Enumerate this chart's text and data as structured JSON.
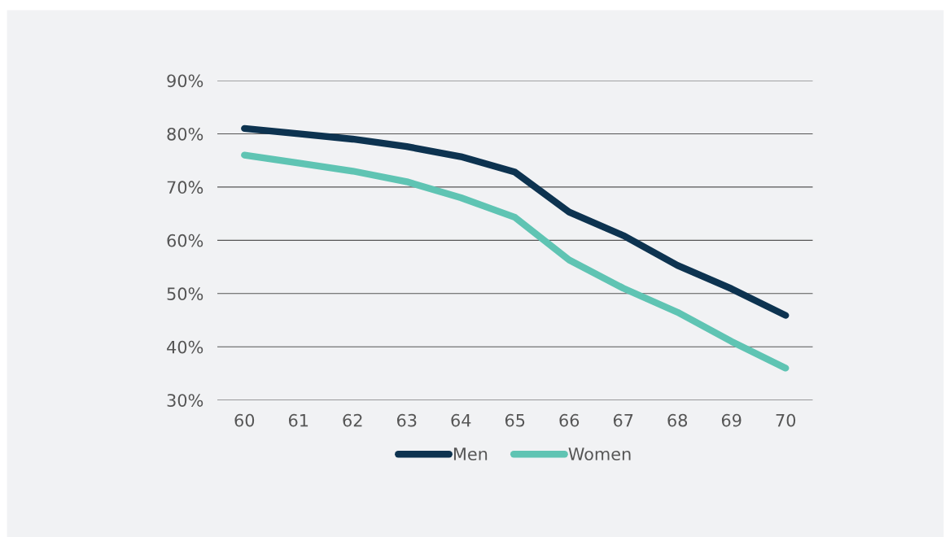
{
  "chart_data": {
    "type": "line",
    "categories": [
      "60",
      "61",
      "62",
      "63",
      "64",
      "65",
      "66",
      "67",
      "68",
      "69",
      "70"
    ],
    "series": [
      {
        "name": "Men",
        "color": "#0d3350",
        "values": [
          81,
          80,
          79,
          77.6,
          75.7,
          72.8,
          65.3,
          60.9,
          55.3,
          50.9,
          45.9
        ]
      },
      {
        "name": "Women",
        "color": "#5fc4b3",
        "values": [
          76,
          74.5,
          73,
          71,
          68,
          64.3,
          56.3,
          51,
          46.5,
          41,
          36
        ]
      }
    ],
    "ylim": [
      30,
      90
    ],
    "yticks": [
      {
        "value": 30,
        "label": "30%"
      },
      {
        "value": 40,
        "label": "40%"
      },
      {
        "value": 50,
        "label": "50%"
      },
      {
        "value": 60,
        "label": "60%"
      },
      {
        "value": 70,
        "label": "70%"
      },
      {
        "value": 80,
        "label": "80%"
      },
      {
        "value": 90,
        "label": "90%"
      }
    ],
    "grid": "y",
    "legend": "bottom",
    "marker": "none",
    "line_style": "solid"
  }
}
